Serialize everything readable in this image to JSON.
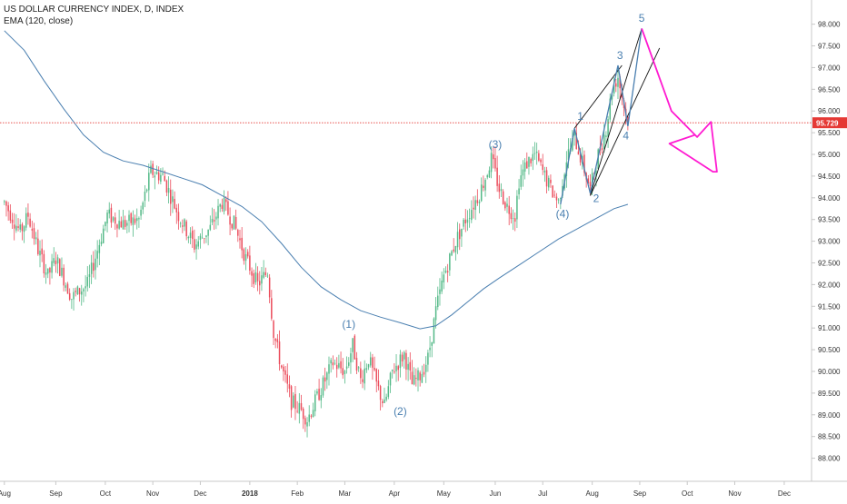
{
  "chart_data": {
    "type": "candlestick",
    "title": "US DOLLAR CURRENCY INDEX, D, INDEX",
    "indicator_label": "EMA (120, close)",
    "colors": {
      "up": "#53b987",
      "down": "#eb4d5c",
      "ema": "#4a7fb0",
      "price_line": "#e53935",
      "price_tag_bg": "#e53935",
      "elliott": "#4a7fb0",
      "forecast": "#ff1ad1",
      "channel": "#111111",
      "axis_text": "#333333",
      "grid_border": "#c8c8c8"
    },
    "ylim": [
      87.7,
      98.3
    ],
    "y_ticks": [
      "98.000",
      "97.500",
      "97.000",
      "96.500",
      "96.000",
      "95.500",
      "95.000",
      "94.500",
      "94.000",
      "93.500",
      "93.000",
      "92.500",
      "92.000",
      "91.500",
      "91.000",
      "90.500",
      "90.000",
      "89.500",
      "89.000",
      "88.500",
      "88.000"
    ],
    "current_price": "95.729",
    "month_ticks": [
      {
        "label": "Aug",
        "pos": 0
      },
      {
        "label": "Sep",
        "pos": 26
      },
      {
        "label": "Oct",
        "pos": 51
      },
      {
        "label": "Nov",
        "pos": 75
      },
      {
        "label": "Dec",
        "pos": 99
      },
      {
        "label": "2018",
        "pos": 124
      },
      {
        "label": "Feb",
        "pos": 148
      },
      {
        "label": "Mar",
        "pos": 172
      },
      {
        "label": "Apr",
        "pos": 197
      },
      {
        "label": "May",
        "pos": 222
      },
      {
        "label": "Jun",
        "pos": 248
      },
      {
        "label": "Jul",
        "pos": 272
      },
      {
        "label": "Aug",
        "pos": 297
      },
      {
        "label": "Sep",
        "pos": 321
      },
      {
        "label": "Oct",
        "pos": 345
      },
      {
        "label": "Nov",
        "pos": 369
      },
      {
        "label": "Dec",
        "pos": 394
      }
    ],
    "price_waypoints": [
      [
        0,
        93.9
      ],
      [
        8,
        93.2
      ],
      [
        12,
        93.6
      ],
      [
        17,
        92.8
      ],
      [
        22,
        92.2
      ],
      [
        26,
        92.6
      ],
      [
        34,
        91.7
      ],
      [
        42,
        92.0
      ],
      [
        52,
        93.6
      ],
      [
        60,
        93.4
      ],
      [
        68,
        93.5
      ],
      [
        74,
        94.6
      ],
      [
        80,
        94.5
      ],
      [
        88,
        93.6
      ],
      [
        96,
        92.9
      ],
      [
        104,
        93.3
      ],
      [
        110,
        93.9
      ],
      [
        116,
        93.4
      ],
      [
        122,
        92.6
      ],
      [
        128,
        92.0
      ],
      [
        133,
        92.3
      ],
      [
        136,
        90.9
      ],
      [
        140,
        90.1
      ],
      [
        145,
        89.3
      ],
      [
        150,
        89.1
      ],
      [
        153,
        88.9
      ],
      [
        157,
        89.3
      ],
      [
        161,
        89.7
      ],
      [
        166,
        90.2
      ],
      [
        172,
        90.0
      ],
      [
        176,
        90.6
      ],
      [
        180,
        89.8
      ],
      [
        184,
        90.3
      ],
      [
        188,
        89.7
      ],
      [
        192,
        89.2
      ],
      [
        196,
        90.0
      ],
      [
        202,
        90.4
      ],
      [
        206,
        89.7
      ],
      [
        210,
        89.9
      ],
      [
        214,
        90.3
      ],
      [
        218,
        91.4
      ],
      [
        222,
        92.2
      ],
      [
        228,
        93.0
      ],
      [
        234,
        93.6
      ],
      [
        240,
        94.1
      ],
      [
        244,
        94.6
      ],
      [
        246,
        94.9
      ],
      [
        250,
        94.2
      ],
      [
        254,
        93.8
      ],
      [
        258,
        93.6
      ],
      [
        260,
        94.4
      ],
      [
        264,
        94.8
      ],
      [
        268,
        95.0
      ],
      [
        272,
        94.6
      ],
      [
        276,
        94.2
      ],
      [
        280,
        93.9
      ],
      [
        284,
        94.9
      ],
      [
        288,
        95.4
      ],
      [
        292,
        94.8
      ],
      [
        296,
        94.2
      ],
      [
        300,
        95.0
      ],
      [
        304,
        95.6
      ],
      [
        307,
        96.5
      ],
      [
        310,
        96.8
      ],
      [
        314,
        95.9
      ],
      [
        315,
        95.8
      ]
    ],
    "ema_waypoints": [
      [
        0,
        97.85
      ],
      [
        10,
        97.4
      ],
      [
        20,
        96.7
      ],
      [
        30,
        96.05
      ],
      [
        40,
        95.45
      ],
      [
        50,
        95.05
      ],
      [
        60,
        94.85
      ],
      [
        70,
        94.75
      ],
      [
        80,
        94.6
      ],
      [
        90,
        94.45
      ],
      [
        100,
        94.3
      ],
      [
        110,
        94.05
      ],
      [
        120,
        93.8
      ],
      [
        130,
        93.45
      ],
      [
        140,
        92.95
      ],
      [
        150,
        92.4
      ],
      [
        160,
        91.95
      ],
      [
        170,
        91.65
      ],
      [
        180,
        91.4
      ],
      [
        190,
        91.25
      ],
      [
        200,
        91.12
      ],
      [
        210,
        90.98
      ],
      [
        218,
        91.05
      ],
      [
        226,
        91.3
      ],
      [
        234,
        91.6
      ],
      [
        242,
        91.9
      ],
      [
        250,
        92.15
      ],
      [
        260,
        92.45
      ],
      [
        270,
        92.75
      ],
      [
        280,
        93.05
      ],
      [
        290,
        93.3
      ],
      [
        300,
        93.55
      ],
      [
        308,
        93.75
      ],
      [
        315,
        93.85
      ]
    ],
    "elliott_labels": [
      {
        "label": "(1)",
        "day": 174,
        "value": 91.0
      },
      {
        "label": "(2)",
        "day": 200,
        "value": 89.0
      },
      {
        "label": "(3)",
        "day": 248,
        "value": 95.15
      },
      {
        "label": "(4)",
        "day": 282,
        "value": 93.55
      },
      {
        "label": "1",
        "day": 291,
        "value": 95.8
      },
      {
        "label": "2",
        "day": 299,
        "value": 93.9
      },
      {
        "label": "3",
        "day": 311,
        "value": 97.2
      },
      {
        "label": "4",
        "day": 314,
        "value": 95.35
      },
      {
        "label": "5",
        "day": 322,
        "value": 98.05
      }
    ],
    "wave_path": [
      [
        281,
        93.85
      ],
      [
        288,
        95.6
      ],
      [
        296,
        94.1
      ],
      [
        310,
        97.05
      ],
      [
        315,
        95.65
      ],
      [
        322,
        97.9
      ]
    ],
    "channel_lines": [
      [
        [
          296,
          94.05
        ],
        [
          322,
          97.9
        ]
      ],
      [
        [
          288,
          95.6
        ],
        [
          312,
          97.05
        ]
      ],
      [
        [
          296,
          94.05
        ],
        [
          331,
          97.45
        ]
      ]
    ],
    "forecast_path": [
      [
        322,
        97.9
      ],
      [
        337,
        96.0
      ],
      [
        350,
        95.4
      ],
      [
        357,
        95.75
      ],
      [
        360,
        94.6
      ],
      [
        358,
        94.6
      ],
      [
        336,
        95.25
      ],
      [
        349,
        95.45
      ]
    ]
  }
}
